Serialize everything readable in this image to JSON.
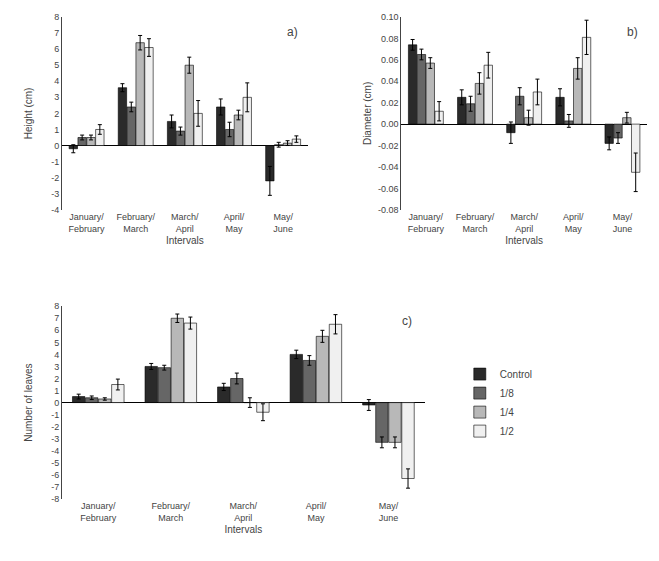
{
  "chart_data": [
    {
      "type": "bar",
      "title": "a)",
      "x_label": "Intervals",
      "y_label": "Height (cm)",
      "categories": [
        "January/\nFebruary",
        "February/\nMarch",
        "March/\nApril",
        "April/\nMay",
        "May/\nJune"
      ],
      "series": [
        {
          "name": "Control",
          "color": "#2a2a2a",
          "values": [
            -0.2,
            3.6,
            1.5,
            2.4,
            -2.2
          ],
          "errors": [
            0.25,
            0.25,
            0.4,
            0.5,
            0.9
          ]
        },
        {
          "name": "1/8",
          "color": "#666666",
          "values": [
            0.5,
            2.4,
            0.9,
            1.0,
            0.05
          ],
          "errors": [
            0.15,
            0.3,
            0.25,
            0.45,
            0.15
          ]
        },
        {
          "name": "1/4",
          "color": "#b8b8b8",
          "values": [
            0.5,
            6.4,
            5.0,
            1.9,
            0.15
          ],
          "errors": [
            0.15,
            0.45,
            0.5,
            0.3,
            0.15
          ]
        },
        {
          "name": "1/2",
          "color": "#f0f0f0",
          "values": [
            1.0,
            6.1,
            2.0,
            3.0,
            0.4
          ],
          "errors": [
            0.3,
            0.55,
            0.8,
            0.9,
            0.2
          ]
        }
      ],
      "ylim": [
        -4,
        8
      ],
      "yticks": [
        -4,
        -3,
        -2,
        -1,
        0,
        1,
        2,
        3,
        4,
        5,
        6,
        7,
        8
      ],
      "grid": false
    },
    {
      "type": "bar",
      "title": "b)",
      "x_label": "Intervals",
      "y_label": "Diameter (cm)",
      "categories": [
        "January/\nFebruary",
        "February/\nMarch",
        "March/\nApril",
        "April/\nMay",
        "May/\nJune"
      ],
      "series": [
        {
          "name": "Control",
          "color": "#2a2a2a",
          "values": [
            0.074,
            0.025,
            -0.008,
            0.025,
            -0.018
          ],
          "errors": [
            0.005,
            0.007,
            0.01,
            0.008,
            0.006
          ]
        },
        {
          "name": "1/8",
          "color": "#666666",
          "values": [
            0.065,
            0.019,
            0.026,
            0.003,
            -0.013
          ],
          "errors": [
            0.005,
            0.007,
            0.008,
            0.006,
            0.005
          ]
        },
        {
          "name": "1/4",
          "color": "#b8b8b8",
          "values": [
            0.057,
            0.038,
            0.006,
            0.052,
            0.006
          ],
          "errors": [
            0.005,
            0.01,
            0.007,
            0.01,
            0.005
          ]
        },
        {
          "name": "1/2",
          "color": "#f0f0f0",
          "values": [
            0.012,
            0.055,
            0.03,
            0.081,
            -0.045
          ],
          "errors": [
            0.009,
            0.012,
            0.012,
            0.016,
            0.018
          ]
        }
      ],
      "ylim": [
        -0.08,
        0.1
      ],
      "yticks": [
        -0.08,
        -0.06,
        -0.04,
        -0.02,
        {
          "value": 0.0,
          "label": "0.00"
        },
        0.02,
        0.04,
        0.06,
        0.08,
        {
          "value": 0.1,
          "label": "0.10"
        }
      ],
      "grid": false
    },
    {
      "type": "bar",
      "title": "c)",
      "x_label": "Intervals",
      "y_label": "Number of leaves",
      "categories": [
        "January/\nFebruary",
        "February/\nMarch",
        "March/\nApril",
        "April/\nMay",
        "May/\nJune"
      ],
      "series": [
        {
          "name": "Control",
          "color": "#2a2a2a",
          "values": [
            0.5,
            3.0,
            1.3,
            4.0,
            -0.2
          ],
          "errors": [
            0.2,
            0.25,
            0.3,
            0.35,
            0.45
          ]
        },
        {
          "name": "1/8",
          "color": "#666666",
          "values": [
            0.4,
            2.9,
            2.0,
            3.5,
            -3.3
          ],
          "errors": [
            0.15,
            0.2,
            0.45,
            0.4,
            0.45
          ]
        },
        {
          "name": "1/4",
          "color": "#b8b8b8",
          "values": [
            0.3,
            7.0,
            0.0,
            5.5,
            -3.3
          ],
          "errors": [
            0.1,
            0.35,
            0.4,
            0.5,
            0.45
          ]
        },
        {
          "name": "1/2",
          "color": "#f0f0f0",
          "values": [
            1.5,
            6.6,
            -0.8,
            6.5,
            -6.3
          ],
          "errors": [
            0.45,
            0.5,
            0.7,
            0.8,
            0.8
          ]
        }
      ],
      "ylim": [
        -8,
        8
      ],
      "yticks": [
        -8,
        -7,
        -6,
        -5,
        -4,
        -3,
        -2,
        -1,
        0,
        1,
        2,
        3,
        4,
        5,
        6,
        7,
        8
      ],
      "grid": false,
      "legend": "right"
    }
  ]
}
